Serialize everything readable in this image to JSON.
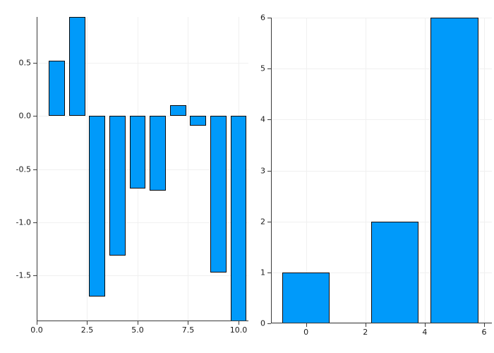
{
  "figure": {
    "background": "#ffffff",
    "bar_fill": "#009afa",
    "bar_stroke": "#0a0a0a",
    "axis_color": "#3a3a3a",
    "grid_color": "#f0f0f0",
    "tick_label_color": "#1a1a1a"
  },
  "chart_data": [
    {
      "type": "bar",
      "title": "",
      "xlabel": "",
      "ylabel": "",
      "x": [
        1,
        2,
        3,
        4,
        5,
        6,
        7,
        8,
        9,
        10
      ],
      "values": [
        0.52,
        0.93,
        -1.7,
        -1.31,
        -0.68,
        -0.7,
        0.1,
        -0.09,
        -1.47,
        -1.93
      ],
      "bar_width": 0.8,
      "xlim": [
        0,
        10.49
      ],
      "ylim": [
        -1.93,
        0.93
      ],
      "xticks": [
        0.0,
        2.5,
        5.0,
        7.5,
        10.0
      ],
      "xtick_labels": [
        "0.0",
        "2.5",
        "5.0",
        "7.5",
        "10.0"
      ],
      "yticks": [
        0.5,
        0.0,
        -0.5,
        -1.0,
        -1.5
      ],
      "ytick_labels": [
        "0.5",
        "0.0",
        "-0.5",
        "-1.0",
        "-1.5"
      ],
      "grid": true,
      "legend": "none"
    },
    {
      "type": "bar",
      "title": "",
      "xlabel": "",
      "ylabel": "",
      "x": [
        0,
        3,
        5
      ],
      "values": [
        1,
        2,
        6
      ],
      "bar_width": 1.6,
      "xlim": [
        -1.18,
        6.26
      ],
      "ylim": [
        0,
        6
      ],
      "xticks": [
        0,
        2,
        4,
        6
      ],
      "xtick_labels": [
        "0",
        "2",
        "4",
        "6"
      ],
      "yticks": [
        0,
        1,
        2,
        3,
        4,
        5,
        6
      ],
      "ytick_labels": [
        "0",
        "1",
        "2",
        "3",
        "4",
        "5",
        "6"
      ],
      "grid": true,
      "legend": "none"
    }
  ]
}
